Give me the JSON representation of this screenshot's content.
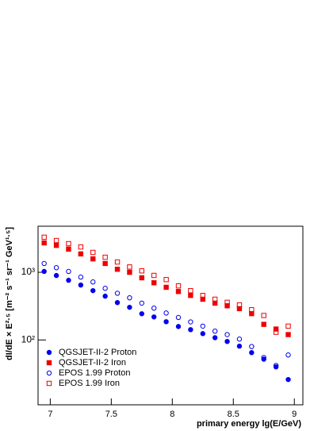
{
  "chart_data": {
    "type": "scatter",
    "xlabel": "primary energy lg(E/GeV)",
    "ylabel": "dI/dE × E²·⁵ [m⁻² s⁻¹ sr⁻¹ GeV¹·⁵]",
    "x": [
      6.95,
      7.05,
      7.15,
      7.25,
      7.35,
      7.45,
      7.55,
      7.65,
      7.75,
      7.85,
      7.95,
      8.05,
      8.15,
      8.25,
      8.35,
      8.45,
      8.55,
      8.65,
      8.75,
      8.85,
      8.95
    ],
    "xlim": [
      6.9,
      9.07
    ],
    "xticks": [
      7,
      7.5,
      8,
      8.5,
      9
    ],
    "ylim": [
      11,
      4800
    ],
    "yticks": [
      {
        "value": 100,
        "label": "10²"
      },
      {
        "value": 1000,
        "label": "10³"
      }
    ],
    "log_y": true,
    "legend": "lower left",
    "series": [
      {
        "name": "QGSJET-II-2 Proton",
        "color": "#0000ee",
        "marker": "circle",
        "filled": true,
        "values": [
          1030,
          897,
          762,
          648,
          536,
          444,
          357,
          304,
          244,
          219,
          186,
          158,
          142,
          124,
          108,
          95,
          81,
          65,
          52,
          40,
          26
        ]
      },
      {
        "name": "QGSJET-II-2 Iron",
        "color": "#ee0000",
        "marker": "square",
        "filled": true,
        "values": [
          2720,
          2500,
          2200,
          1870,
          1580,
          1350,
          1110,
          1000,
          830,
          700,
          600,
          520,
          455,
          400,
          350,
          320,
          290,
          245,
          170,
          145,
          120
        ]
      },
      {
        "name": "EPOS 1.99 Proton",
        "color": "#0000ee",
        "marker": "circle",
        "filled": false,
        "values": [
          1350,
          1170,
          1030,
          850,
          720,
          580,
          490,
          420,
          350,
          295,
          250,
          215,
          185,
          160,
          135,
          120,
          103,
          80,
          55,
          42,
          60
        ]
      },
      {
        "name": "EPOS 1.99 Iron",
        "color": "#ee0000",
        "marker": "square",
        "filled": false,
        "values": [
          3300,
          2950,
          2650,
          2370,
          1970,
          1670,
          1420,
          1200,
          1050,
          900,
          780,
          630,
          535,
          455,
          400,
          360,
          330,
          280,
          230,
          130,
          160
        ]
      }
    ]
  }
}
